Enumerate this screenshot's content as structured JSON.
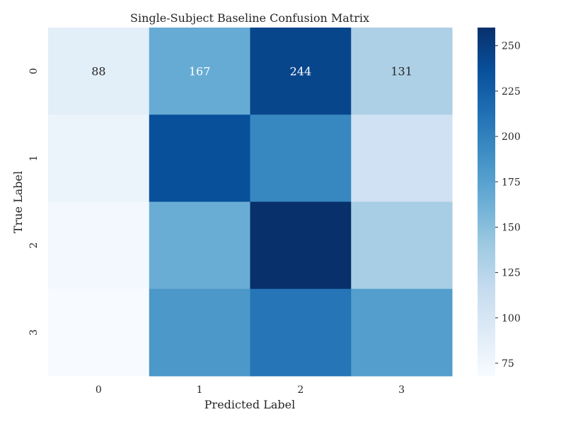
{
  "chart_data": {
    "type": "heatmap",
    "title": "Single-Subject Baseline Confusion Matrix",
    "xlabel": "Predicted Label",
    "ylabel": "True Label",
    "x_categories": [
      "0",
      "1",
      "2",
      "3"
    ],
    "y_categories": [
      "0",
      "1",
      "2",
      "3"
    ],
    "values": [
      [
        88,
        167,
        244,
        131
      ],
      [
        80,
        237,
        196,
        107
      ],
      [
        73,
        165,
        260,
        134
      ],
      [
        68,
        183,
        209,
        178
      ]
    ],
    "annotations": [
      [
        "88",
        "167",
        "244",
        "131"
      ],
      [
        "",
        "",
        "",
        ""
      ],
      [
        "",
        "",
        "",
        ""
      ],
      [
        "",
        "",
        "",
        ""
      ]
    ],
    "colormap": "Blues",
    "vmin": 68,
    "vmax": 260,
    "colorbar_ticks": [
      75,
      100,
      125,
      150,
      175,
      200,
      225,
      250
    ],
    "grid": false,
    "colorbar_position": "right"
  }
}
